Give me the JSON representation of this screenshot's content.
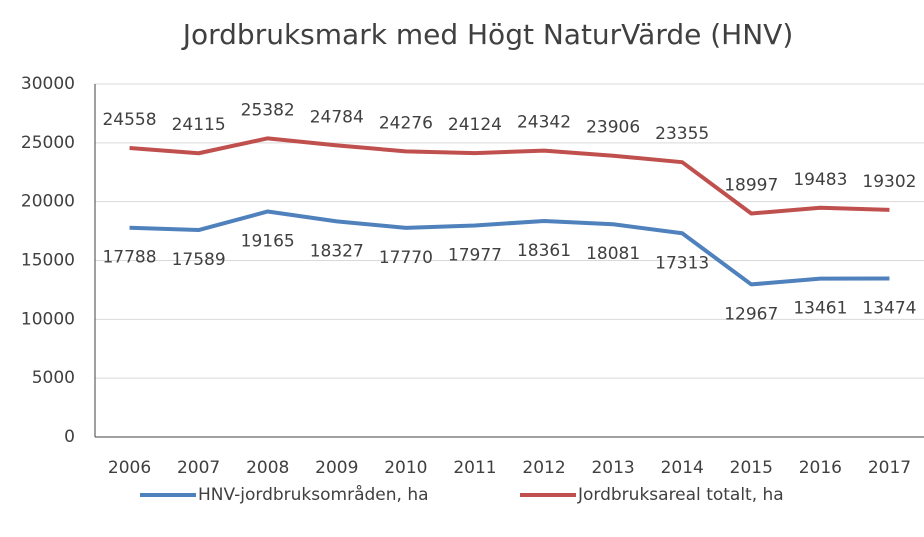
{
  "chart_data": {
    "type": "line",
    "title": "Jordbruksmark med Högt NaturVärde (HNV)",
    "categories": [
      "2006",
      "2007",
      "2008",
      "2009",
      "2010",
      "2011",
      "2012",
      "2013",
      "2014",
      "2015",
      "2016",
      "2017"
    ],
    "series": [
      {
        "name": "HNV-jordbruksområden, ha",
        "color": "#4f81bd",
        "values": [
          17788,
          17589,
          19165,
          18327,
          17770,
          17977,
          18361,
          18081,
          17313,
          12967,
          13461,
          13474
        ]
      },
      {
        "name": "Jordbruksareal totalt, ha",
        "color": "#c0504d",
        "values": [
          24558,
          24115,
          25382,
          24784,
          24276,
          24124,
          24342,
          23906,
          23355,
          18997,
          19483,
          19302
        ]
      }
    ],
    "ylim": [
      0,
      30000
    ],
    "yticks": [
      0,
      5000,
      10000,
      15000,
      20000,
      25000,
      30000
    ],
    "grid": true,
    "legend": "bottom"
  }
}
